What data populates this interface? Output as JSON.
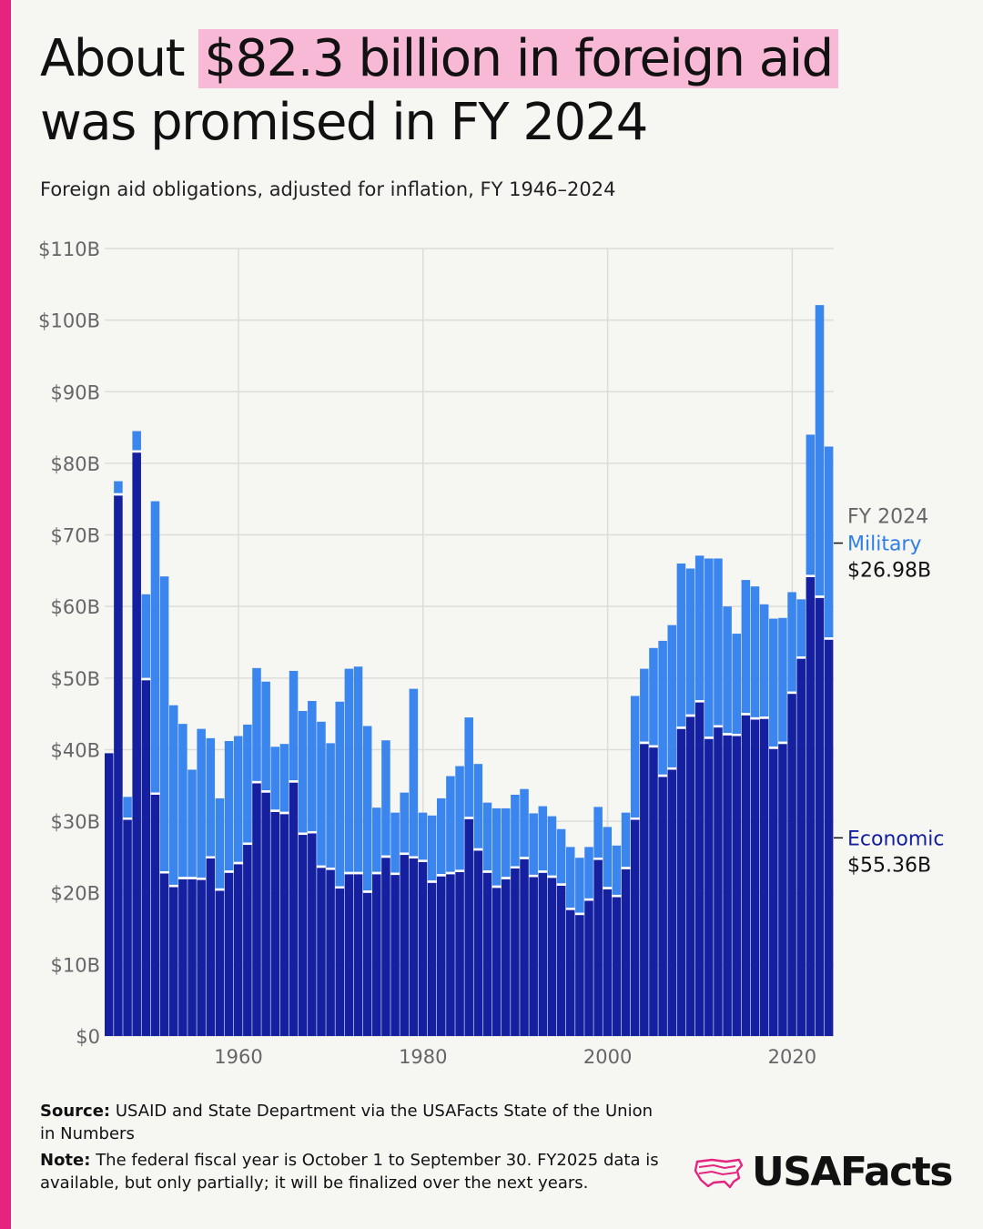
{
  "header": {
    "title_pre": "About ",
    "title_highlight": "$82.3 billion in foreign aid",
    "title_post": "was promised in FY 2024",
    "subtitle": "Foreign aid obligations, adjusted for inflation, FY 1946–2024"
  },
  "footer": {
    "source_label": "Source:",
    "source_text": "USAID and State Department via the USAFacts State of the Union in Numbers",
    "note_label": "Note:",
    "note_text": "The federal fiscal year is October 1 to September 30. FY2025 data is available, but only partially; it will be finalized over the next years."
  },
  "logo": {
    "text": "USAFacts",
    "icon": "usa-map-icon"
  },
  "colors": {
    "economic": "#1420a0",
    "military": "#3a86ee",
    "accent": "#e4247f",
    "highlight": "#f7b9d6"
  },
  "chart_data": {
    "type": "bar",
    "stacked": true,
    "title": "About $82.3 billion in foreign aid was promised in FY 2024",
    "subtitle": "Foreign aid obligations, adjusted for inflation, FY 1946–2024",
    "ylim": [
      0,
      110
    ],
    "yticks": [
      0,
      10,
      20,
      30,
      40,
      50,
      60,
      70,
      80,
      90,
      100,
      110
    ],
    "ytick_labels": [
      "$0",
      "$10B",
      "$20B",
      "$30B",
      "$40B",
      "$50B",
      "$60B",
      "$70B",
      "$80B",
      "$90B",
      "$100B",
      "$110B"
    ],
    "xticks": [
      1960,
      1980,
      2000,
      2020
    ],
    "xtick_labels": [
      "1960",
      "1980",
      "2000",
      "2020"
    ],
    "grid": true,
    "years": [
      1946,
      1947,
      1948,
      1949,
      1950,
      1951,
      1952,
      1953,
      1954,
      1955,
      1956,
      1957,
      1958,
      1959,
      1960,
      1961,
      1962,
      1963,
      1964,
      1965,
      1966,
      1967,
      1968,
      1969,
      1970,
      1971,
      1972,
      1973,
      1974,
      1975,
      1976,
      1977,
      1978,
      1979,
      1980,
      1981,
      1982,
      1983,
      1984,
      1985,
      1986,
      1987,
      1988,
      1989,
      1990,
      1991,
      1992,
      1993,
      1994,
      1995,
      1996,
      1997,
      1998,
      1999,
      2000,
      2001,
      2002,
      2003,
      2004,
      2005,
      2006,
      2007,
      2008,
      2009,
      2010,
      2011,
      2012,
      2013,
      2014,
      2015,
      2016,
      2017,
      2018,
      2019,
      2020,
      2021,
      2022,
      2023,
      2024
    ],
    "series": [
      {
        "name": "Economic",
        "values": [
          39.5,
          75.5,
          30.2,
          81.5,
          49.7,
          33.7,
          22.7,
          20.8,
          21.9,
          21.9,
          21.8,
          24.8,
          20.3,
          22.8,
          24.0,
          26.7,
          35.3,
          34.0,
          31.3,
          31.0,
          35.4,
          28.1,
          28.3,
          23.5,
          23.2,
          20.6,
          22.6,
          22.6,
          20.0,
          22.6,
          24.9,
          22.5,
          25.3,
          24.8,
          24.3,
          21.4,
          22.3,
          22.6,
          22.9,
          30.3,
          25.9,
          22.8,
          20.7,
          21.9,
          23.4,
          24.7,
          22.2,
          22.8,
          22.1,
          21.0,
          17.6,
          16.9,
          18.9,
          24.6,
          20.5,
          19.4,
          23.3,
          30.2,
          40.8,
          40.3,
          36.2,
          37.2,
          42.9,
          44.6,
          46.6,
          41.5,
          43.1,
          42.0,
          41.9,
          44.8,
          44.2,
          44.3,
          40.1,
          40.8,
          47.8,
          52.7,
          64.1,
          61.2,
          55.36
        ]
      },
      {
        "name": "Military",
        "values": [
          0.0,
          2.0,
          3.2,
          3.0,
          12.0,
          41.0,
          41.5,
          25.4,
          21.7,
          15.3,
          21.1,
          16.8,
          12.9,
          18.4,
          17.9,
          16.8,
          16.1,
          15.5,
          9.1,
          9.8,
          15.6,
          17.3,
          18.5,
          20.4,
          17.7,
          26.1,
          28.7,
          29.0,
          23.3,
          9.3,
          16.4,
          8.7,
          8.7,
          23.7,
          6.9,
          9.4,
          10.9,
          13.7,
          14.8,
          14.2,
          12.1,
          9.8,
          11.1,
          9.9,
          10.3,
          9.8,
          8.9,
          9.3,
          8.6,
          7.9,
          8.8,
          8.0,
          7.5,
          7.4,
          8.7,
          7.2,
          7.9,
          17.3,
          10.5,
          13.9,
          19.0,
          20.2,
          23.1,
          20.7,
          20.5,
          25.2,
          23.6,
          18.0,
          14.3,
          18.9,
          18.6,
          16.0,
          18.2,
          17.6,
          14.2,
          8.3,
          19.9,
          40.9,
          26.98
        ]
      }
    ],
    "annotation": {
      "year_label": "FY 2024",
      "military_label": "Military",
      "military_value": "$26.98B",
      "economic_label": "Economic",
      "economic_value": "$55.36B"
    }
  }
}
